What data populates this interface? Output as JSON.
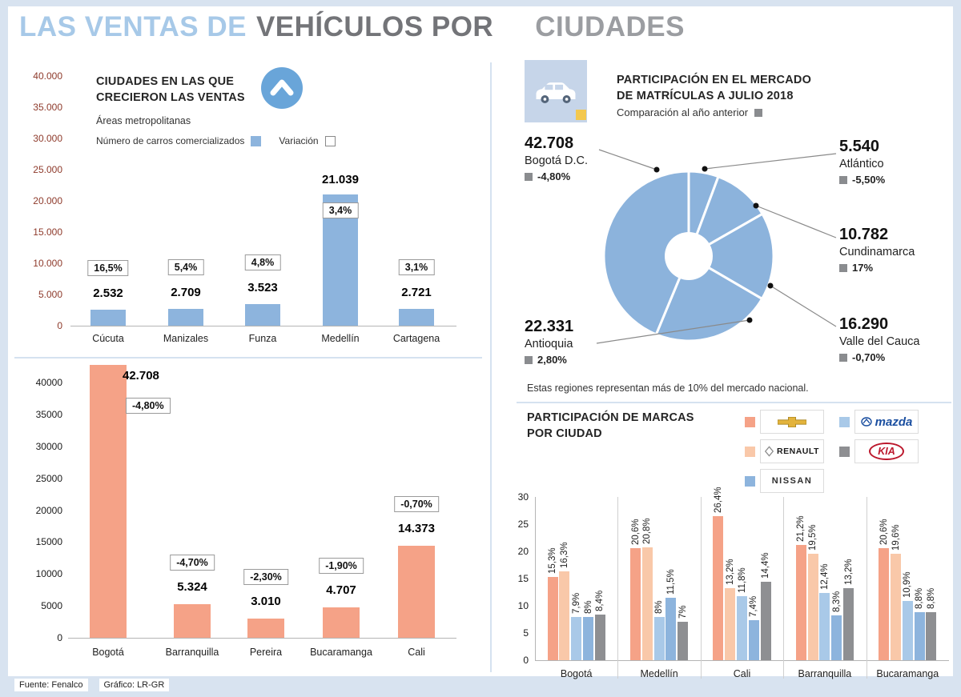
{
  "page_title": {
    "part1": "LAS VENTAS DE",
    "part2": "VEHÍCULOS POR",
    "part3": "CIUDADES"
  },
  "footer": {
    "source": "Fuente: Fenalco",
    "credit": "Gráfico: LR-GR"
  },
  "colors": {
    "background": "#d8e3f0",
    "blue_bar": "#8db4dd",
    "salmon_bar": "#f5a287",
    "peach_bar": "#f9c8a9",
    "light_blue_bar": "#a9c9e8",
    "mid_blue_bar": "#8db4dd",
    "gray_bar": "#8e8f92",
    "pie_slice": "#8cb3dc",
    "axis_red": "#8e3a2b",
    "variation_square_gray": "#8a8c8f"
  },
  "chart_data": [
    {
      "id": "ciudades-crecieron",
      "type": "bar",
      "title": "CIUDADES EN LAS QUE CRECIERON LAS VENTAS",
      "subtitle": "Áreas metropolitanas",
      "legend": [
        {
          "label": "Número de carros comercializados",
          "swatch": "blue"
        },
        {
          "label": "Variación",
          "swatch": "outline"
        }
      ],
      "ylim": [
        0,
        40000
      ],
      "ytick_labels": [
        "40.000",
        "35.000",
        "30.000",
        "25.000",
        "20.000",
        "15.000",
        "10.000",
        "5.000",
        "0"
      ],
      "categories": [
        "Cúcuta",
        "Manizales",
        "Funza",
        "Medellín",
        "Cartagena"
      ],
      "values": [
        2532,
        2709,
        3523,
        21039,
        2721
      ],
      "value_labels": [
        "2.532",
        "2.709",
        "3.523",
        "21.039",
        "2.721"
      ],
      "variation_labels": [
        "16,5%",
        "5,4%",
        "4,8%",
        "3,4%",
        "3,1%"
      ]
    },
    {
      "id": "ciudades-cayeron",
      "type": "bar",
      "ylim": [
        0,
        40000
      ],
      "ytick_labels": [
        "40000",
        "35000",
        "30000",
        "25000",
        "20000",
        "15000",
        "10000",
        "5000",
        "0"
      ],
      "categories": [
        "Bogotá",
        "Barranquilla",
        "Pereira",
        "Bucaramanga",
        "Cali"
      ],
      "values": [
        42708,
        5324,
        3010,
        4707,
        14373
      ],
      "value_labels": [
        "42.708",
        "5.324",
        "3.010",
        "4.707",
        "14.373"
      ],
      "variation_labels": [
        "-4,80%",
        "-4,70%",
        "-2,30%",
        "-1,90%",
        "-0,70%"
      ]
    },
    {
      "id": "mercado-matriculas",
      "type": "pie",
      "title": "PARTICIPACIÓN EN EL MERCADO DE MATRÍCULAS A JULIO 2018",
      "subtitle": "Comparación al año anterior",
      "note": "Estas regiones representan más de 10% del mercado nacional.",
      "slices": [
        {
          "name": "Bogotá D.C.",
          "value": 42708,
          "value_label": "42.708",
          "variation": "-4,80%"
        },
        {
          "name": "Atlántico",
          "value": 5540,
          "value_label": "5.540",
          "variation": "-5,50%"
        },
        {
          "name": "Cundinamarca",
          "value": 10782,
          "value_label": "10.782",
          "variation": "17%"
        },
        {
          "name": "Valle del Cauca",
          "value": 16290,
          "value_label": "16.290",
          "variation": "-0,70%"
        },
        {
          "name": "Antioquia",
          "value": 22331,
          "value_label": "22.331",
          "variation": "2,80%"
        }
      ]
    },
    {
      "id": "marcas-por-ciudad",
      "type": "bar",
      "title": "PARTICIPACIÓN DE MARCAS POR CIUDAD",
      "ylim": [
        0,
        30
      ],
      "ytick_labels": [
        "30",
        "25",
        "20",
        "15",
        "10",
        "5",
        "0"
      ],
      "categories": [
        "Bogotá",
        "Medellín",
        "Cali",
        "Barranquilla",
        "Bucaramanga"
      ],
      "series": [
        {
          "name": "Chevrolet",
          "color_key": "salmon_bar",
          "values": [
            15.3,
            20.6,
            26.4,
            21.2,
            20.6
          ],
          "labels": [
            "15,3%",
            "20,6%",
            "26,4%",
            "21,2%",
            "20,6%"
          ]
        },
        {
          "name": "Renault",
          "color_key": "peach_bar",
          "values": [
            16.3,
            20.8,
            13.2,
            19.5,
            19.6
          ],
          "labels": [
            "16,3%",
            "20,8%",
            "13,2%",
            "19,5%",
            "19,6%"
          ]
        },
        {
          "name": "Mazda",
          "color_key": "light_blue_bar",
          "values": [
            7.9,
            8,
            11.8,
            12.4,
            10.9
          ],
          "labels": [
            "7,9%",
            "8%",
            "11,8%",
            "12,4%",
            "10,9%"
          ]
        },
        {
          "name": "Nissan",
          "color_key": "mid_blue_bar",
          "values": [
            8,
            11.5,
            7.4,
            8.3,
            8.8
          ],
          "labels": [
            "8%",
            "11,5%",
            "7,4%",
            "8,3%",
            "8,8%"
          ]
        },
        {
          "name": "Kia",
          "color_key": "gray_bar",
          "values": [
            8.4,
            7,
            14.4,
            13.2,
            8.8
          ],
          "labels": [
            "8,4%",
            "7%",
            "14,4%",
            "13,2%",
            "8,8%"
          ]
        }
      ]
    }
  ],
  "brand_legend": [
    {
      "name": "Chevrolet",
      "wordmark": "",
      "swatch": "#f5a287"
    },
    {
      "name": "Mazda",
      "wordmark": "mazda",
      "swatch": "#a9c9e8"
    },
    {
      "name": "Renault",
      "wordmark": "RENAULT",
      "swatch": "#f9c8a9"
    },
    {
      "name": "Kia",
      "wordmark": "KIA",
      "swatch": "#8e8f92"
    },
    {
      "name": "Nissan",
      "wordmark": "NISSAN",
      "swatch": "#8db4dd"
    }
  ]
}
